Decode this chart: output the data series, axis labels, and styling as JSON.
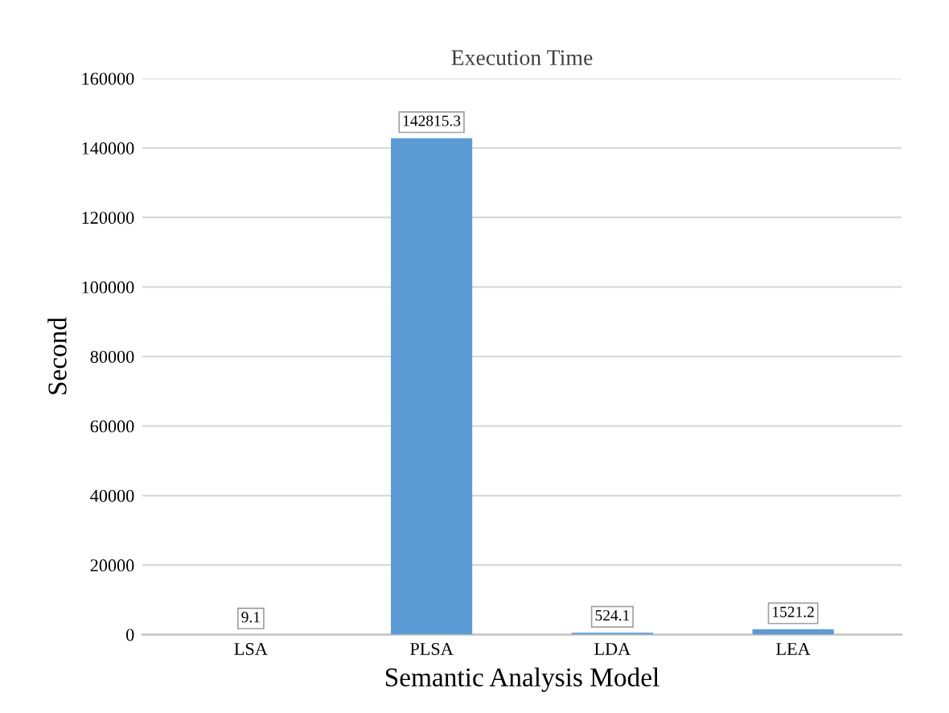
{
  "chart_data": {
    "type": "bar",
    "title": "Execution Time",
    "xlabel": "Semantic Analysis Model",
    "ylabel": "Second",
    "categories": [
      "LSA",
      "PLSA",
      "LDA",
      "LEA"
    ],
    "values": [
      9.1,
      142815.3,
      524.1,
      1521.2
    ],
    "value_labels": [
      "9.1",
      "142815.3",
      "524.1",
      "1521.2"
    ],
    "color": "#5b9bd5",
    "ylim": [
      0,
      160000
    ],
    "yticks": [
      0,
      20000,
      40000,
      60000,
      80000,
      100000,
      120000,
      140000,
      160000
    ],
    "grid": "y"
  }
}
